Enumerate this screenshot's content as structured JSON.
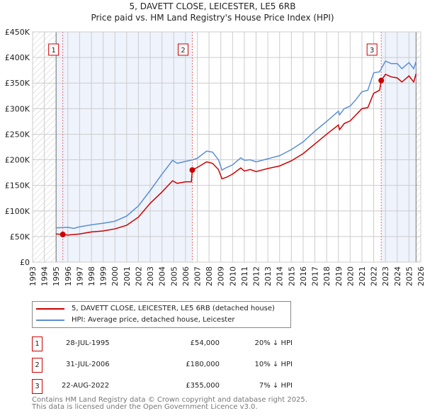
{
  "chart_data": {
    "type": "line",
    "title": "5, DAVETT CLOSE, LEICESTER, LE5 6RB",
    "subtitle": "Price paid vs. HM Land Registry's House Price Index (HPI)",
    "xlim": [
      1993,
      2026
    ],
    "ylim": [
      0,
      450000
    ],
    "y_ticks": [
      {
        "v": 0,
        "label": "£0"
      },
      {
        "v": 50000,
        "label": "£50K"
      },
      {
        "v": 100000,
        "label": "£100K"
      },
      {
        "v": 150000,
        "label": "£150K"
      },
      {
        "v": 200000,
        "label": "£200K"
      },
      {
        "v": 250000,
        "label": "£250K"
      },
      {
        "v": 300000,
        "label": "£300K"
      },
      {
        "v": 350000,
        "label": "£350K"
      },
      {
        "v": 400000,
        "label": "£400K"
      },
      {
        "v": 450000,
        "label": "£450K"
      }
    ],
    "x_ticks": [
      "1993",
      "1994",
      "1995",
      "1996",
      "1997",
      "1998",
      "1999",
      "2000",
      "2001",
      "2002",
      "2003",
      "2004",
      "2005",
      "2006",
      "2007",
      "2008",
      "2009",
      "2010",
      "2011",
      "2012",
      "2013",
      "2014",
      "2015",
      "2016",
      "2017",
      "2018",
      "2019",
      "2020",
      "2021",
      "2022",
      "2023",
      "2024",
      "2025",
      "2026"
    ],
    "grid": true,
    "series": [
      {
        "name": "5, DAVETT CLOSE, LEICESTER, LE5 6RB (detached house)",
        "color": "#cc0000",
        "x": [
          1995.0,
          1995.57,
          1996,
          1997,
          1998,
          1999,
          2000,
          2001,
          2002,
          2003,
          2004,
          2004.9,
          2005.3,
          2006,
          2006.5,
          2006.58,
          2007,
          2007.8,
          2008.3,
          2008.8,
          2009.1,
          2009.5,
          2010,
          2010.7,
          2011,
          2011.5,
          2012,
          2013,
          2014,
          2015,
          2016,
          2017,
          2018,
          2019,
          2019.1,
          2019.5,
          2020,
          2020.5,
          2021,
          2021.5,
          2022,
          2022.5,
          2022.64,
          2023,
          2023.5,
          2024,
          2024.4,
          2025,
          2025.4,
          2025.6
        ],
        "y": [
          55000,
          54000,
          53000,
          55000,
          59000,
          61000,
          65000,
          72000,
          88000,
          115000,
          137000,
          159000,
          154000,
          157000,
          157000,
          180000,
          185000,
          196000,
          193000,
          181000,
          163000,
          166000,
          172000,
          184000,
          178000,
          181000,
          177000,
          183000,
          188000,
          198000,
          212000,
          231000,
          250000,
          268000,
          259000,
          271000,
          276000,
          288000,
          300000,
          302000,
          330000,
          336000,
          355000,
          367000,
          362000,
          360000,
          352000,
          364000,
          352000,
          368000
        ]
      },
      {
        "name": "HPI: Average price, detached house, Leicester",
        "color": "#5b8fd4",
        "x": [
          1995.0,
          1996,
          1996.5,
          1997,
          1998,
          1999,
          2000,
          2001,
          2002,
          2003,
          2004,
          2004.9,
          2005.3,
          2006,
          2006.6,
          2007,
          2007.8,
          2008.3,
          2008.8,
          2009.1,
          2009.5,
          2010,
          2010.7,
          2011,
          2011.5,
          2012,
          2013,
          2014,
          2015,
          2016,
          2017,
          2018,
          2019,
          2019.1,
          2019.5,
          2020,
          2020.5,
          2021,
          2021.5,
          2022,
          2022.5,
          2023,
          2023.5,
          2024,
          2024.4,
          2025,
          2025.4,
          2025.6
        ],
        "y": [
          67000,
          68000,
          66000,
          69000,
          73000,
          76000,
          80000,
          90000,
          110000,
          140000,
          172000,
          199000,
          193000,
          197000,
          200000,
          203000,
          217000,
          215000,
          200000,
          180000,
          185000,
          190000,
          204000,
          199000,
          200000,
          196000,
          202000,
          208000,
          220000,
          235000,
          256000,
          275000,
          295000,
          288000,
          300000,
          305000,
          318000,
          333000,
          336000,
          370000,
          372000,
          393000,
          388000,
          388000,
          378000,
          390000,
          378000,
          392000
        ]
      }
    ],
    "sales": [
      {
        "id": "1",
        "x": 1995.57,
        "y": 54000
      },
      {
        "id": "2",
        "x": 2006.58,
        "y": 180000
      },
      {
        "id": "3",
        "x": 2022.64,
        "y": 355000
      }
    ],
    "data_end": 2025.6
  },
  "legend": {
    "red": "5, DAVETT CLOSE, LEICESTER, LE5 6RB (detached house)",
    "blue": "HPI: Average price, detached house, Leicester"
  },
  "table": [
    {
      "id": "1",
      "date": "28-JUL-1995",
      "price": "£54,000",
      "hpi": "20% ↓ HPI"
    },
    {
      "id": "2",
      "date": "31-JUL-2006",
      "price": "£180,000",
      "hpi": "10% ↓ HPI"
    },
    {
      "id": "3",
      "date": "22-AUG-2022",
      "price": "£355,000",
      "hpi": "7% ↓ HPI"
    }
  ],
  "footer": {
    "line1": "Contains HM Land Registry data © Crown copyright and database right 2025.",
    "line2": "This data is licensed under the Open Government Licence v3.0."
  }
}
